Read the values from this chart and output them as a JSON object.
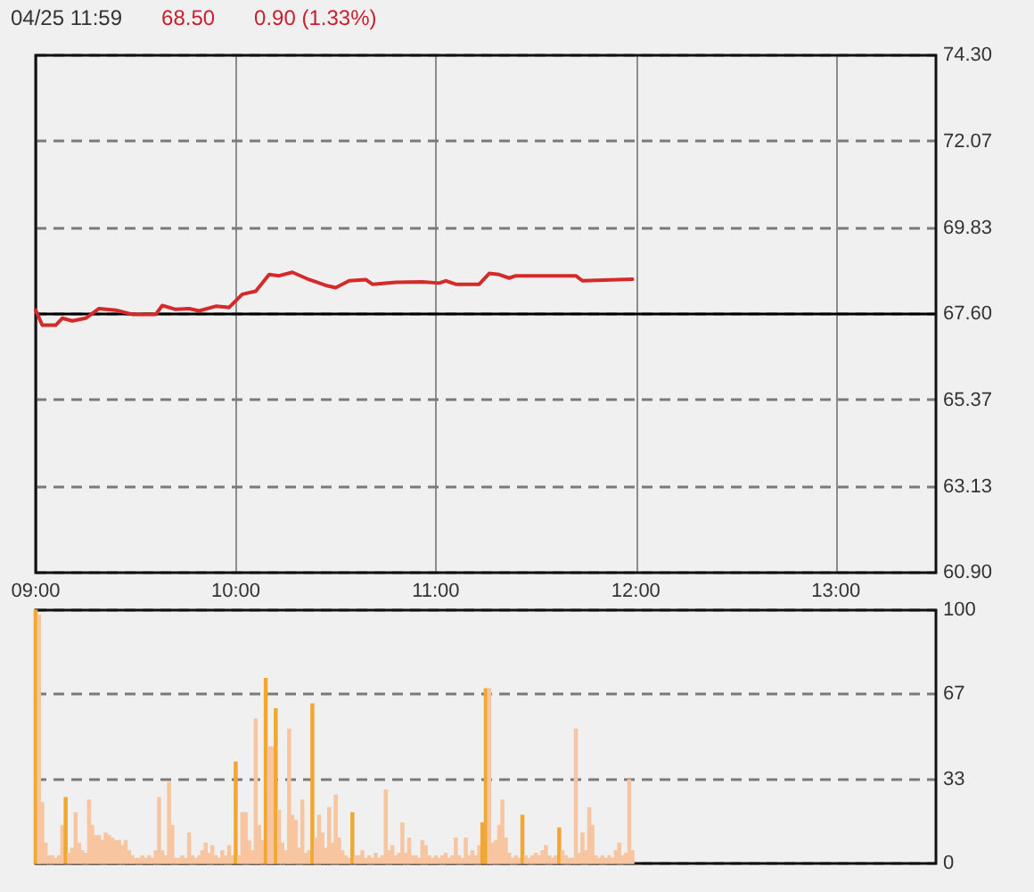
{
  "chart_data": [
    {
      "type": "line",
      "title": "04/25 11:59",
      "annotations": [
        "68.50",
        "0.90 (1.33%)"
      ],
      "x": [
        9,
        9.033,
        9.1,
        9.133,
        9.183,
        9.25,
        9.317,
        9.4,
        9.483,
        9.6,
        9.633,
        9.7,
        9.767,
        9.817,
        9.9,
        9.967,
        10.033,
        10.1,
        10.167,
        10.217,
        10.283,
        10.367,
        10.45,
        10.5,
        10.567,
        10.65,
        10.683,
        10.8,
        10.933,
        11.017,
        11.05,
        11.1,
        11.217,
        11.267,
        11.317,
        11.367,
        11.4,
        11.7,
        11.733,
        11.983
      ],
      "series": [
        {
          "color": "#d42a2a",
          "values": [
            67.7,
            67.31,
            67.31,
            67.49,
            67.42,
            67.49,
            67.74,
            67.7,
            67.59,
            67.59,
            67.82,
            67.72,
            67.74,
            67.68,
            67.8,
            67.77,
            68.11,
            68.19,
            68.62,
            68.59,
            68.68,
            68.49,
            68.34,
            68.28,
            68.46,
            68.49,
            68.37,
            68.42,
            68.43,
            68.4,
            68.46,
            68.37,
            68.37,
            68.65,
            68.62,
            68.53,
            68.59,
            68.59,
            68.46,
            68.5
          ]
        }
      ],
      "xlim": [
        9,
        13.5
      ],
      "xticks": [
        {
          "value": 9,
          "label": "09:00"
        },
        {
          "value": 10,
          "label": "10:00"
        },
        {
          "value": 11,
          "label": "11:00"
        },
        {
          "value": 12,
          "label": "12:00"
        },
        {
          "value": 13,
          "label": "13:00"
        }
      ],
      "ylim": [
        60.9,
        74.3
      ],
      "yticks": [
        {
          "value": 60.9,
          "label": "60.90"
        },
        63.13,
        65.37,
        {
          "value": 67.6,
          "label": "67.60"
        },
        69.83,
        72.07,
        {
          "value": 74.3,
          "label": "74.30"
        }
      ],
      "grid": true,
      "ref_lines": [
        {
          "axis": "y",
          "value": 67.6,
          "color": "#000000",
          "line_style": "solid"
        }
      ]
    },
    {
      "type": "bar",
      "x": [
        9,
        9.017,
        9.033,
        9.05,
        9.067,
        9.083,
        9.1,
        9.117,
        9.133,
        9.15,
        9.167,
        9.183,
        9.2,
        9.217,
        9.233,
        9.25,
        9.267,
        9.283,
        9.3,
        9.317,
        9.333,
        9.35,
        9.367,
        9.383,
        9.4,
        9.417,
        9.433,
        9.45,
        9.467,
        9.483,
        9.5,
        9.517,
        9.533,
        9.55,
        9.567,
        9.583,
        9.6,
        9.617,
        9.633,
        9.65,
        9.667,
        9.683,
        9.7,
        9.717,
        9.733,
        9.75,
        9.767,
        9.783,
        9.8,
        9.817,
        9.833,
        9.85,
        9.867,
        9.883,
        9.9,
        9.917,
        9.933,
        9.95,
        9.967,
        9.983,
        10,
        10.017,
        10.033,
        10.05,
        10.067,
        10.083,
        10.1,
        10.117,
        10.133,
        10.15,
        10.167,
        10.183,
        10.2,
        10.217,
        10.233,
        10.25,
        10.267,
        10.283,
        10.3,
        10.317,
        10.333,
        10.35,
        10.367,
        10.383,
        10.4,
        10.417,
        10.433,
        10.45,
        10.467,
        10.483,
        10.5,
        10.517,
        10.533,
        10.55,
        10.567,
        10.583,
        10.6,
        10.617,
        10.633,
        10.65,
        10.667,
        10.683,
        10.7,
        10.717,
        10.733,
        10.75,
        10.767,
        10.783,
        10.8,
        10.817,
        10.833,
        10.85,
        10.867,
        10.883,
        10.9,
        10.917,
        10.933,
        10.95,
        10.967,
        10.983,
        11,
        11.017,
        11.033,
        11.05,
        11.067,
        11.083,
        11.1,
        11.117,
        11.133,
        11.15,
        11.167,
        11.183,
        11.2,
        11.217,
        11.233,
        11.25,
        11.267,
        11.283,
        11.3,
        11.317,
        11.333,
        11.35,
        11.367,
        11.383,
        11.4,
        11.417,
        11.433,
        11.45,
        11.467,
        11.483,
        11.5,
        11.517,
        11.533,
        11.55,
        11.567,
        11.583,
        11.6,
        11.617,
        11.633,
        11.65,
        11.667,
        11.683,
        11.7,
        11.717,
        11.733,
        11.75,
        11.767,
        11.783,
        11.8,
        11.817,
        11.833,
        11.85,
        11.867,
        11.883,
        11.9,
        11.917,
        11.933,
        11.95,
        11.967,
        11.983
      ],
      "values": [
        100,
        98,
        24,
        8,
        3,
        3,
        2,
        3,
        15,
        26,
        4,
        6,
        20,
        8,
        5,
        4,
        25,
        15,
        11,
        11,
        9,
        12,
        11,
        10,
        9,
        9,
        7,
        9,
        5,
        3,
        2,
        2,
        3,
        2,
        3,
        2,
        5,
        26,
        5,
        3,
        32,
        15,
        2,
        2,
        3,
        2,
        12,
        3,
        2,
        3,
        5,
        8,
        4,
        7,
        3,
        2,
        5,
        3,
        7,
        3,
        40,
        3,
        20,
        20,
        9,
        5,
        57,
        15,
        9,
        73,
        46,
        46,
        61,
        21,
        8,
        5,
        53,
        19,
        17,
        6,
        25,
        4,
        5,
        63,
        10,
        19,
        12,
        6,
        22,
        8,
        27,
        10,
        5,
        3,
        2,
        20,
        3,
        3,
        5,
        2,
        3,
        2,
        4,
        2,
        3,
        29,
        5,
        7,
        3,
        4,
        16,
        4,
        10,
        3,
        3,
        2,
        9,
        7,
        3,
        2,
        3,
        2,
        3,
        4,
        2,
        3,
        10,
        3,
        2,
        10,
        3,
        5,
        3,
        7,
        16,
        69,
        69,
        8,
        9,
        15,
        25,
        10,
        4,
        2,
        3,
        2,
        19,
        3,
        2,
        3,
        4,
        3,
        5,
        7,
        3,
        2,
        3,
        14,
        5,
        3,
        2,
        2,
        53,
        4,
        12,
        5,
        22,
        15,
        3,
        2,
        3,
        2,
        3,
        2,
        5,
        8,
        3,
        4,
        33,
        5
      ],
      "colors": [
        "#f0a832",
        "#f7c59f",
        "#f7c59f",
        "#f7c59f",
        "#f7c59f",
        "#f7c59f",
        "#f7c59f",
        "#f7c59f",
        "#f7c59f",
        "#f0a832",
        "#f7c59f",
        "#f7c59f",
        "#f7c59f",
        "#f7c59f",
        "#f7c59f",
        "#f7c59f",
        "#f7c59f",
        "#f7c59f",
        "#f7c59f",
        "#f7c59f",
        "#f7c59f",
        "#f7c59f",
        "#f7c59f",
        "#f7c59f",
        "#f7c59f",
        "#f7c59f",
        "#f7c59f",
        "#f7c59f",
        "#f7c59f",
        "#f7c59f",
        "#f7c59f",
        "#f7c59f",
        "#f7c59f",
        "#f7c59f",
        "#f7c59f",
        "#f7c59f",
        "#f7c59f",
        "#f7c59f",
        "#f7c59f",
        "#f7c59f",
        "#f7c59f",
        "#f7c59f",
        "#f7c59f",
        "#f7c59f",
        "#f7c59f",
        "#f7c59f",
        "#f7c59f",
        "#f7c59f",
        "#f7c59f",
        "#f7c59f",
        "#f7c59f",
        "#f7c59f",
        "#f7c59f",
        "#f7c59f",
        "#f7c59f",
        "#f7c59f",
        "#f7c59f",
        "#f7c59f",
        "#f7c59f",
        "#f7c59f",
        "#f0a832",
        "#f7c59f",
        "#f7c59f",
        "#f7c59f",
        "#f7c59f",
        "#f7c59f",
        "#f7c59f",
        "#f7c59f",
        "#f7c59f",
        "#f0a832",
        "#f7c59f",
        "#f7c59f",
        "#f0a832",
        "#f7c59f",
        "#f7c59f",
        "#f7c59f",
        "#f7c59f",
        "#f7c59f",
        "#f7c59f",
        "#f7c59f",
        "#f7c59f",
        "#f7c59f",
        "#f7c59f",
        "#f0a832",
        "#f7c59f",
        "#f7c59f",
        "#f7c59f",
        "#f7c59f",
        "#f7c59f",
        "#f7c59f",
        "#f7c59f",
        "#f7c59f",
        "#f7c59f",
        "#f7c59f",
        "#f7c59f",
        "#f0a832",
        "#f7c59f",
        "#f7c59f",
        "#f7c59f",
        "#f7c59f",
        "#f7c59f",
        "#f7c59f",
        "#f7c59f",
        "#f7c59f",
        "#f7c59f",
        "#f7c59f",
        "#f7c59f",
        "#f7c59f",
        "#f7c59f",
        "#f7c59f",
        "#f7c59f",
        "#f7c59f",
        "#f7c59f",
        "#f7c59f",
        "#f7c59f",
        "#f7c59f",
        "#f7c59f",
        "#f7c59f",
        "#f7c59f",
        "#f7c59f",
        "#f7c59f",
        "#f7c59f",
        "#f7c59f",
        "#f7c59f",
        "#f7c59f",
        "#f7c59f",
        "#f7c59f",
        "#f7c59f",
        "#f7c59f",
        "#f7c59f",
        "#f7c59f",
        "#f7c59f",
        "#f7c59f",
        "#f7c59f",
        "#f0a832",
        "#f0a832",
        "#f7c59f",
        "#f7c59f",
        "#f7c59f",
        "#f7c59f",
        "#f7c59f",
        "#f7c59f",
        "#f7c59f",
        "#f7c59f",
        "#f7c59f",
        "#f7c59f",
        "#f0a832",
        "#f7c59f",
        "#f7c59f",
        "#f7c59f",
        "#f7c59f",
        "#f7c59f",
        "#f7c59f",
        "#f7c59f",
        "#f7c59f",
        "#f7c59f",
        "#f7c59f",
        "#f0a832",
        "#f7c59f",
        "#f7c59f",
        "#f7c59f",
        "#f7c59f",
        "#f7c59f",
        "#f7c59f",
        "#f7c59f",
        "#f7c59f",
        "#f7c59f",
        "#f7c59f",
        "#f7c59f",
        "#f7c59f",
        "#f7c59f",
        "#f7c59f",
        "#f7c59f",
        "#f7c59f",
        "#f7c59f",
        "#f7c59f",
        "#f7c59f",
        "#f7c59f",
        "#f7c59f",
        "#f7c59f"
      ],
      "xlim": [
        9,
        13.5
      ],
      "ylim": [
        0,
        100
      ],
      "yticks": [
        0,
        33,
        67,
        100
      ],
      "grid": "y",
      "tick_labels": "y"
    }
  ]
}
